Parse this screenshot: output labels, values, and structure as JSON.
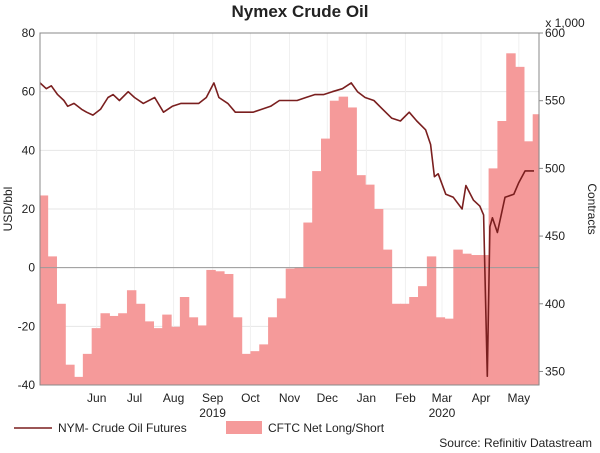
{
  "chart_data": {
    "type": "area",
    "title": "Nymex Crude Oil",
    "ylabel_left": "USD/bbl",
    "ylabel_right": "Contracts",
    "right_axis_multiplier": "x 1,000",
    "source": "Source: Refinitiv Datastream",
    "ylim_left": [
      -40,
      80
    ],
    "ylim_right": [
      340,
      600
    ],
    "yticks_left": [
      "80",
      "60",
      "40",
      "20",
      "0",
      "-20",
      "-40"
    ],
    "yticks_right": [
      "600",
      "550",
      "500",
      "450",
      "400",
      "350"
    ],
    "x_range": [
      "2019-05-01",
      "2020-05-31"
    ],
    "xticks": [
      {
        "date": "2019-06-15",
        "label": "Jun"
      },
      {
        "date": "2019-07-15",
        "label": "Jul"
      },
      {
        "date": "2019-08-15",
        "label": "Aug"
      },
      {
        "date": "2019-09-15",
        "label": "Sep"
      },
      {
        "date": "2019-10-15",
        "label": "Oct"
      },
      {
        "date": "2019-11-15",
        "label": "Nov"
      },
      {
        "date": "2019-12-15",
        "label": "Dec"
      },
      {
        "date": "2020-01-15",
        "label": "Jan"
      },
      {
        "date": "2020-02-15",
        "label": "Feb"
      },
      {
        "date": "2020-03-15",
        "label": "Mar"
      },
      {
        "date": "2020-04-15",
        "label": "Apr"
      },
      {
        "date": "2020-05-15",
        "label": "May"
      }
    ],
    "year_labels": [
      {
        "date": "2019-09-15",
        "label": "2019"
      },
      {
        "date": "2020-03-15",
        "label": "2020"
      }
    ],
    "grid": true,
    "legend_position": "bottom-left",
    "series": [
      {
        "name": "CFTC Net Long/Short",
        "axis": "right",
        "kind": "area",
        "color": "#f59a9a",
        "x": [
          "2019-04-30",
          "2019-05-07",
          "2019-05-14",
          "2019-05-21",
          "2019-05-28",
          "2019-06-04",
          "2019-06-11",
          "2019-06-18",
          "2019-06-25",
          "2019-07-02",
          "2019-07-09",
          "2019-07-16",
          "2019-07-23",
          "2019-07-30",
          "2019-08-06",
          "2019-08-13",
          "2019-08-20",
          "2019-08-27",
          "2019-09-03",
          "2019-09-10",
          "2019-09-17",
          "2019-09-24",
          "2019-10-01",
          "2019-10-08",
          "2019-10-15",
          "2019-10-22",
          "2019-10-29",
          "2019-11-05",
          "2019-11-12",
          "2019-11-19",
          "2019-11-26",
          "2019-12-03",
          "2019-12-10",
          "2019-12-17",
          "2019-12-24",
          "2019-12-31",
          "2020-01-07",
          "2020-01-14",
          "2020-01-21",
          "2020-01-28",
          "2020-02-04",
          "2020-02-11",
          "2020-02-18",
          "2020-02-25",
          "2020-03-03",
          "2020-03-10",
          "2020-03-17",
          "2020-03-24",
          "2020-03-31",
          "2020-04-07",
          "2020-04-14",
          "2020-04-21",
          "2020-04-28",
          "2020-05-05",
          "2020-05-12",
          "2020-05-19",
          "2020-05-26"
        ],
        "values": [
          480,
          435,
          400,
          355,
          346,
          363,
          382,
          393,
          391,
          393,
          410,
          400,
          387,
          382,
          392,
          383,
          405,
          390,
          384,
          425,
          424,
          422,
          390,
          363,
          365,
          370,
          390,
          404,
          426,
          427,
          460,
          498,
          522,
          550,
          553,
          545,
          495,
          488,
          470,
          440,
          400,
          400,
          405,
          413,
          435,
          390,
          389,
          440,
          437,
          436,
          436,
          500,
          535,
          585,
          575,
          520,
          540
        ]
      },
      {
        "name": "NYM- Crude Oil Futures",
        "axis": "left",
        "kind": "line",
        "color": "#7a1f1f",
        "x": [
          "2019-05-01",
          "2019-05-06",
          "2019-05-10",
          "2019-05-15",
          "2019-05-20",
          "2019-05-23",
          "2019-05-28",
          "2019-06-03",
          "2019-06-07",
          "2019-06-12",
          "2019-06-18",
          "2019-06-24",
          "2019-06-28",
          "2019-07-03",
          "2019-07-10",
          "2019-07-15",
          "2019-07-22",
          "2019-07-31",
          "2019-08-07",
          "2019-08-14",
          "2019-08-21",
          "2019-08-28",
          "2019-09-04",
          "2019-09-10",
          "2019-09-16",
          "2019-09-20",
          "2019-09-27",
          "2019-10-03",
          "2019-10-10",
          "2019-10-17",
          "2019-10-24",
          "2019-10-31",
          "2019-11-07",
          "2019-11-14",
          "2019-11-21",
          "2019-11-28",
          "2019-12-05",
          "2019-12-12",
          "2019-12-19",
          "2019-12-27",
          "2020-01-03",
          "2020-01-08",
          "2020-01-14",
          "2020-01-21",
          "2020-01-28",
          "2020-02-04",
          "2020-02-11",
          "2020-02-18",
          "2020-02-24",
          "2020-03-02",
          "2020-03-06",
          "2020-03-09",
          "2020-03-12",
          "2020-03-18",
          "2020-03-24",
          "2020-03-31",
          "2020-04-03",
          "2020-04-09",
          "2020-04-14",
          "2020-04-17",
          "2020-04-20",
          "2020-04-22",
          "2020-04-24",
          "2020-04-28",
          "2020-05-04",
          "2020-05-11",
          "2020-05-15",
          "2020-05-20",
          "2020-05-27"
        ],
        "values": [
          63,
          61,
          62,
          59,
          57,
          55,
          56,
          54,
          53,
          52,
          54,
          58,
          59,
          57,
          60,
          58,
          56,
          58,
          53,
          55,
          56,
          56,
          56,
          58,
          63,
          58,
          56,
          53,
          53,
          53,
          54,
          55,
          57,
          57,
          57,
          58,
          59,
          59,
          60,
          61,
          63,
          60,
          58,
          57,
          54,
          51,
          50,
          53,
          50,
          47,
          42,
          31,
          32,
          25,
          24,
          20,
          28,
          23,
          21,
          18,
          -37,
          14,
          17,
          12,
          24,
          25,
          29,
          33,
          33
        ]
      }
    ]
  }
}
